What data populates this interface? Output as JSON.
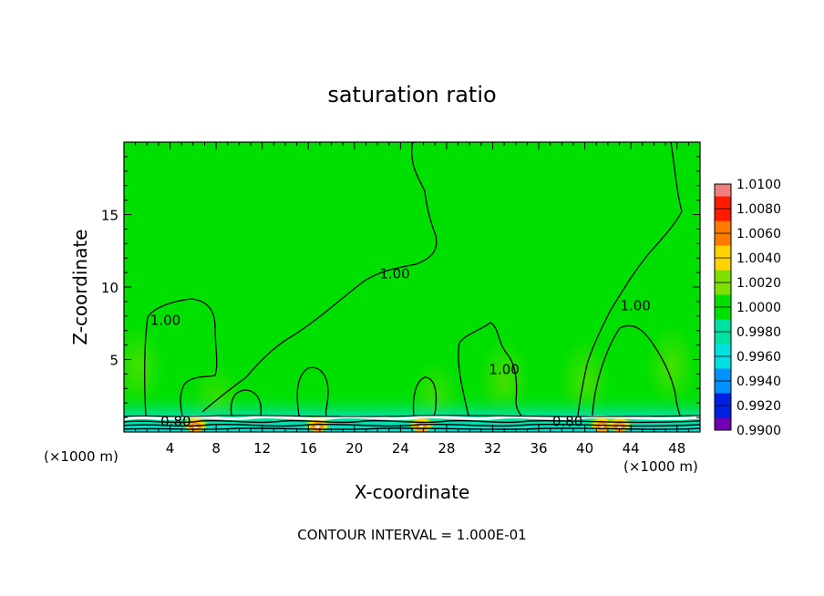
{
  "chart_data": {
    "type": "heatmap",
    "title": "saturation ratio",
    "xlabel": "X-coordinate",
    "ylabel": "Z-coordinate",
    "x_unit_left": "(×1000 m)",
    "x_unit_right": "(×1000 m)",
    "xlim": [
      0,
      50
    ],
    "ylim": [
      0,
      20
    ],
    "x_ticks": [
      4,
      8,
      12,
      16,
      20,
      24,
      28,
      32,
      36,
      40,
      44,
      48
    ],
    "y_ticks": [
      5,
      10,
      15
    ],
    "colorbar": {
      "levels": [
        1.01,
        1.008,
        1.006,
        1.004,
        1.002,
        1.0,
        0.998,
        0.996,
        0.994,
        0.992,
        0.99
      ],
      "labels": [
        "1.0100",
        "1.0080",
        "1.0060",
        "1.0040",
        "1.0020",
        "1.0000",
        "0.9980",
        "0.9960",
        "0.9940",
        "0.9920",
        "0.9900"
      ],
      "colors": [
        "#f08080",
        "#ff1a00",
        "#ff7a00",
        "#ffd200",
        "#7de000",
        "#00e000",
        "#00e0a0",
        "#00e0e0",
        "#0090ff",
        "#0020e0",
        "#7000b0"
      ]
    },
    "background_color": "#00e000",
    "contour_labels": [
      {
        "text": "1.00",
        "x": 3.6,
        "z": 7.4
      },
      {
        "text": "1.00",
        "x": 23.5,
        "z": 10.6
      },
      {
        "text": "1.00",
        "x": 33.0,
        "z": 4.0
      },
      {
        "text": "1.00",
        "x": 44.4,
        "z": 8.4
      },
      {
        "text": "0.80",
        "x": 4.5,
        "z": 0.4
      },
      {
        "text": "0.80",
        "x": 38.5,
        "z": 0.4
      }
    ],
    "hotspots_x": [
      6.2,
      16.8,
      25.8,
      41.5,
      43.0
    ],
    "footer": "CONTOUR INTERVAL = 1.000E-01"
  }
}
